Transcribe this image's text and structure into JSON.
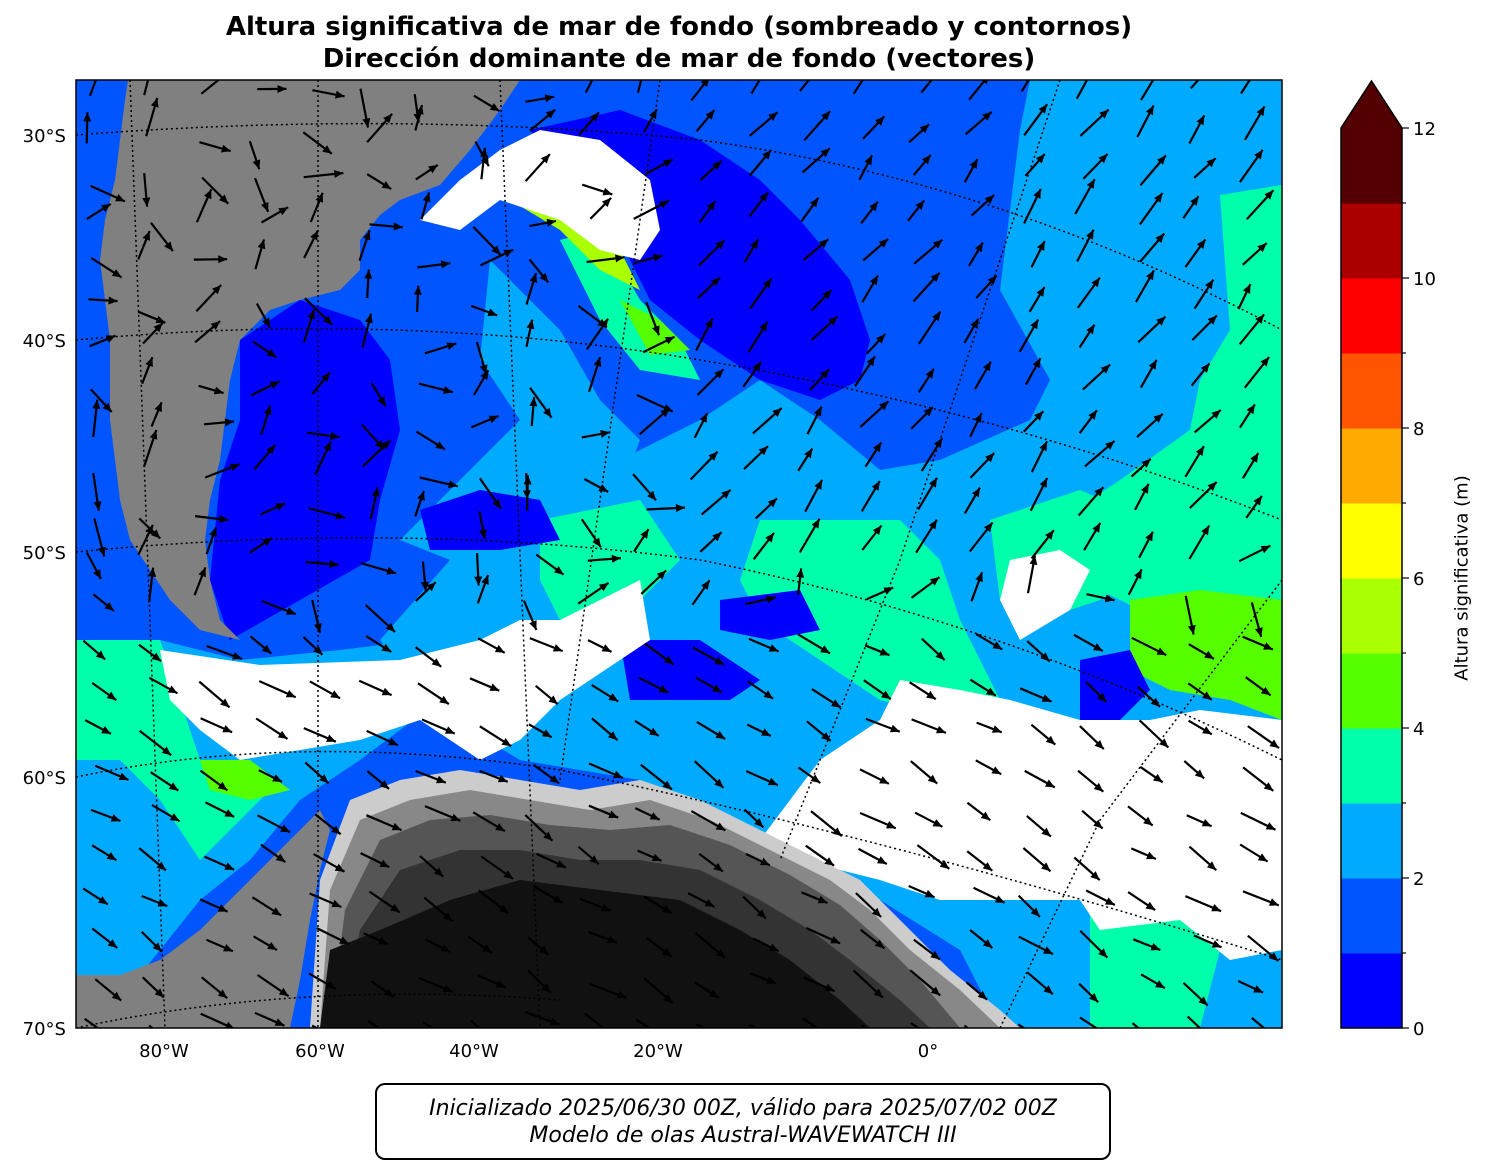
{
  "title": {
    "line1": "Altura significativa de mar de fondo (sombreado y contornos)",
    "line2": "Dirección dominante de mar de fondo (vectores)"
  },
  "map": {
    "lat_labels": [
      "30°S",
      "40°S",
      "50°S",
      "60°S",
      "70°S"
    ],
    "lon_labels": [
      "80°W",
      "60°W",
      "40°W",
      "20°W",
      "0°"
    ]
  },
  "colorbar": {
    "label": "Altura significativa (m)",
    "tick_labels": [
      "0",
      "2",
      "4",
      "6",
      "8",
      "10",
      "12"
    ],
    "levels": [
      0,
      1,
      2,
      3,
      4,
      5,
      6,
      7,
      8,
      9,
      10,
      11,
      12
    ],
    "colors": [
      "#0000ff",
      "#0055ff",
      "#00aaff",
      "#00ffaa",
      "#55ff00",
      "#aaff00",
      "#ffff00",
      "#ffaa00",
      "#ff5500",
      "#ff0000",
      "#aa0000",
      "#550000"
    ],
    "extend_color": "#550000"
  },
  "colors": {
    "land": "#808080",
    "antarctica_dark": "#111111",
    "below_threshold": "#ffffff"
  },
  "footer": {
    "line1": "Inicializado 2025/06/30 00Z, válido para 2025/07/02 00Z",
    "line2": "Modelo de olas Austral-WAVEWATCH III"
  }
}
